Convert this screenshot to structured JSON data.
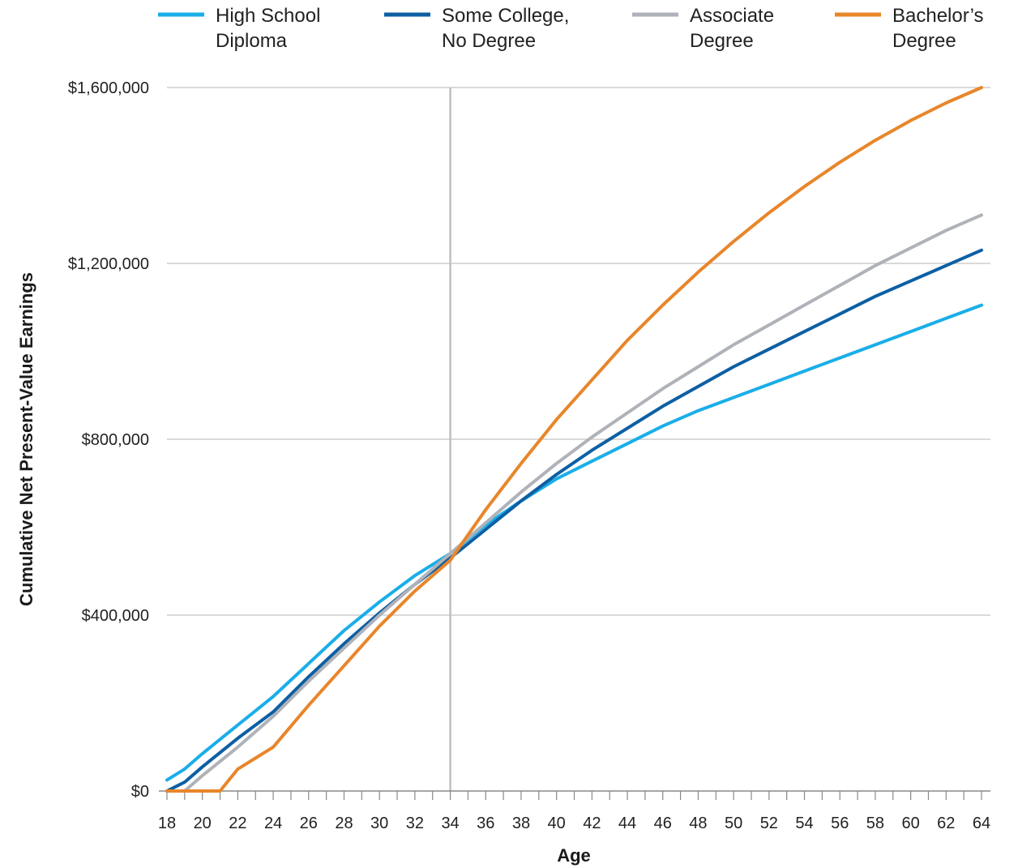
{
  "chart_data": {
    "type": "line",
    "title": "",
    "xlabel": "Age",
    "ylabel": "Cumulative Net Present-Value Earnings",
    "xlim": [
      18,
      64
    ],
    "ylim": [
      0,
      1600000
    ],
    "x_ticks": [
      18,
      20,
      22,
      24,
      26,
      28,
      30,
      32,
      34,
      36,
      38,
      40,
      42,
      44,
      46,
      48,
      50,
      52,
      54,
      56,
      58,
      60,
      62,
      64
    ],
    "x_tick_labels": [
      "18",
      "20",
      "22",
      "24",
      "26",
      "28",
      "30",
      "32",
      "34",
      "36",
      "38",
      "40",
      "42",
      "44",
      "46",
      "48",
      "50",
      "52",
      "54",
      "56",
      "58",
      "60",
      "62",
      "64"
    ],
    "y_ticks": [
      0,
      400000,
      800000,
      1200000,
      1600000
    ],
    "y_tick_labels": [
      "$0",
      "$400,000",
      "$800,000",
      "$1,200,000",
      "$1,600,000"
    ],
    "grid": "horizontal",
    "reference_line_x": 34,
    "legend_position": "top",
    "series": [
      {
        "name": "High School Diploma",
        "legend_lines": [
          "High School",
          "Diploma"
        ],
        "color": "#1aaee8",
        "points": [
          [
            18,
            25000
          ],
          [
            19,
            50000
          ],
          [
            20,
            85000
          ],
          [
            22,
            150000
          ],
          [
            24,
            215000
          ],
          [
            26,
            290000
          ],
          [
            28,
            365000
          ],
          [
            30,
            430000
          ],
          [
            32,
            490000
          ],
          [
            34,
            540000
          ],
          [
            36,
            605000
          ],
          [
            38,
            660000
          ],
          [
            40,
            710000
          ],
          [
            42,
            750000
          ],
          [
            44,
            790000
          ],
          [
            46,
            830000
          ],
          [
            48,
            865000
          ],
          [
            50,
            895000
          ],
          [
            52,
            925000
          ],
          [
            54,
            955000
          ],
          [
            56,
            985000
          ],
          [
            58,
            1015000
          ],
          [
            60,
            1045000
          ],
          [
            62,
            1075000
          ],
          [
            64,
            1105000
          ]
        ]
      },
      {
        "name": "Some College, No Degree",
        "legend_lines": [
          "Some College,",
          "No Degree"
        ],
        "color": "#0d5fa3",
        "points": [
          [
            18,
            0
          ],
          [
            19,
            20000
          ],
          [
            20,
            55000
          ],
          [
            22,
            120000
          ],
          [
            24,
            180000
          ],
          [
            26,
            260000
          ],
          [
            28,
            335000
          ],
          [
            30,
            405000
          ],
          [
            32,
            470000
          ],
          [
            34,
            530000
          ],
          [
            36,
            595000
          ],
          [
            38,
            660000
          ],
          [
            40,
            720000
          ],
          [
            42,
            775000
          ],
          [
            44,
            825000
          ],
          [
            46,
            875000
          ],
          [
            48,
            920000
          ],
          [
            50,
            965000
          ],
          [
            52,
            1005000
          ],
          [
            54,
            1045000
          ],
          [
            56,
            1085000
          ],
          [
            58,
            1125000
          ],
          [
            60,
            1160000
          ],
          [
            62,
            1195000
          ],
          [
            64,
            1230000
          ]
        ]
      },
      {
        "name": "Associate Degree",
        "legend_lines": [
          "Associate",
          "Degree"
        ],
        "color": "#afb2b8",
        "points": [
          [
            18,
            0
          ],
          [
            19,
            0
          ],
          [
            20,
            35000
          ],
          [
            22,
            100000
          ],
          [
            24,
            170000
          ],
          [
            26,
            250000
          ],
          [
            28,
            325000
          ],
          [
            30,
            400000
          ],
          [
            32,
            470000
          ],
          [
            34,
            540000
          ],
          [
            36,
            610000
          ],
          [
            38,
            680000
          ],
          [
            40,
            745000
          ],
          [
            42,
            805000
          ],
          [
            44,
            860000
          ],
          [
            46,
            915000
          ],
          [
            48,
            965000
          ],
          [
            50,
            1015000
          ],
          [
            52,
            1060000
          ],
          [
            54,
            1105000
          ],
          [
            56,
            1150000
          ],
          [
            58,
            1195000
          ],
          [
            60,
            1235000
          ],
          [
            62,
            1275000
          ],
          [
            64,
            1310000
          ]
        ]
      },
      {
        "name": "Bachelor’s Degree",
        "legend_lines": [
          "Bachelor’s",
          "Degree"
        ],
        "color": "#e8862a",
        "points": [
          [
            18,
            0
          ],
          [
            19,
            0
          ],
          [
            20,
            0
          ],
          [
            21,
            0
          ],
          [
            22,
            50000
          ],
          [
            24,
            100000
          ],
          [
            26,
            195000
          ],
          [
            28,
            285000
          ],
          [
            30,
            375000
          ],
          [
            32,
            455000
          ],
          [
            34,
            525000
          ],
          [
            36,
            640000
          ],
          [
            38,
            745000
          ],
          [
            40,
            845000
          ],
          [
            42,
            935000
          ],
          [
            44,
            1025000
          ],
          [
            46,
            1105000
          ],
          [
            48,
            1180000
          ],
          [
            50,
            1250000
          ],
          [
            52,
            1315000
          ],
          [
            54,
            1375000
          ],
          [
            56,
            1430000
          ],
          [
            58,
            1480000
          ],
          [
            60,
            1525000
          ],
          [
            62,
            1565000
          ],
          [
            64,
            1600000
          ]
        ]
      }
    ]
  }
}
